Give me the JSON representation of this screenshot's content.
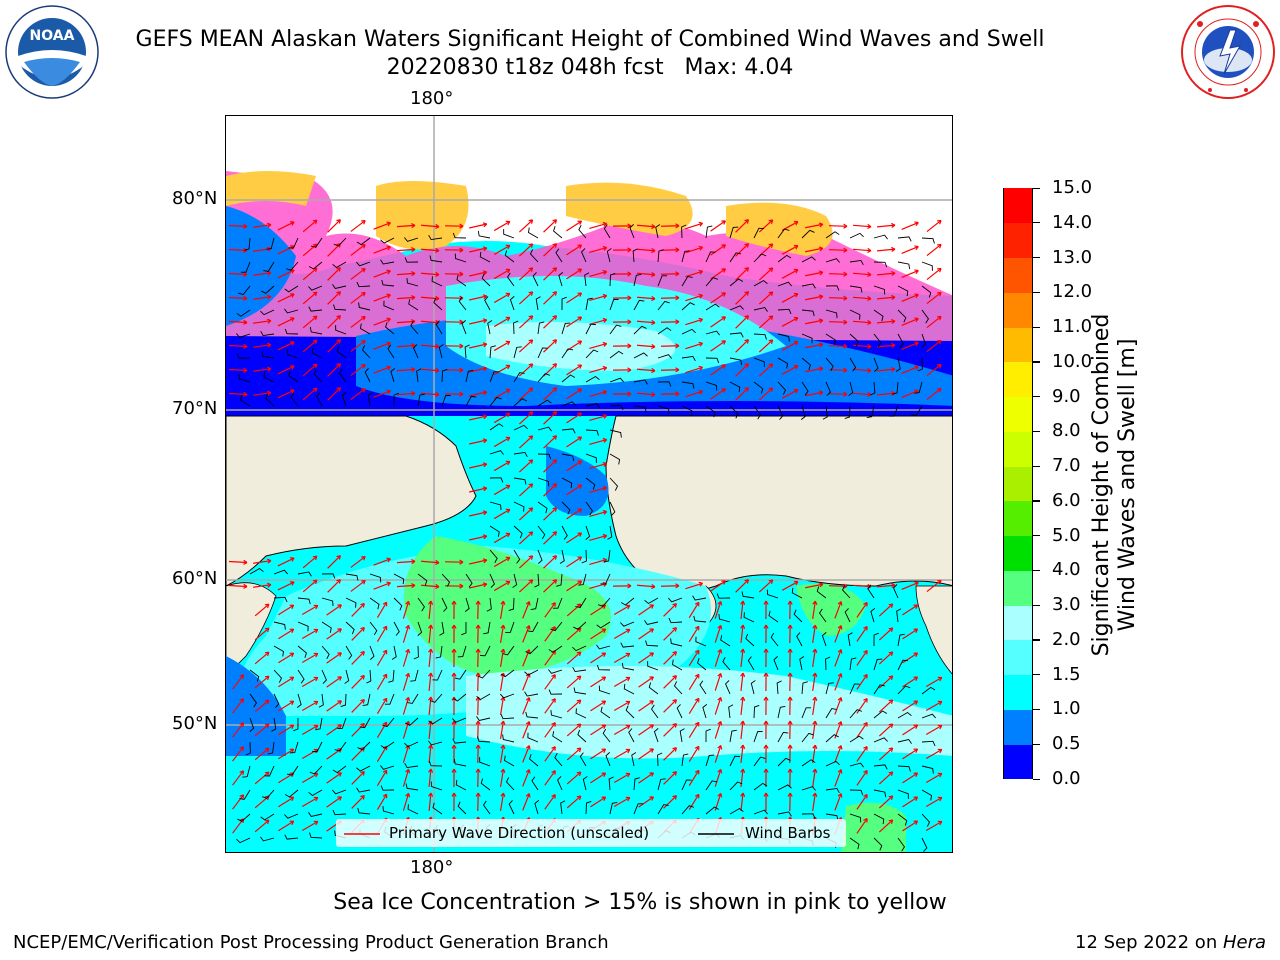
{
  "header": {
    "title_line1": "GEFS MEAN Alaskan Waters Significant Height of Combined Wind Waves and Swell",
    "title_line2": "20220830 t18z 048h fcst   Max: 4.04",
    "left_logo": {
      "text": "NOAA",
      "ring_text": "NATIONAL OCEANIC AND ATMOSPHERIC ADMINISTRATION · U.S. DEPARTMENT OF COMMERCE",
      "color": "#1a5aa8"
    },
    "right_logo": {
      "ring_text": "NATIONAL WEATHER SERVICE",
      "color": "#e02020"
    }
  },
  "map": {
    "lon_labels": [
      "180°",
      "180°"
    ],
    "lat_labels": [
      "80°N",
      "70°N",
      "60°N",
      "50°N"
    ],
    "land_color": "#f0eddd",
    "legend": {
      "wave_label": "Primary Wave Direction (unscaled)",
      "wind_label": "Wind Barbs",
      "wave_color": "#ff0000",
      "wind_color": "#000000"
    }
  },
  "colorbar": {
    "title_line1": "Significant Height of Combined",
    "title_line2": "Wind Waves and Swell [m]",
    "ticks": [
      "15.0",
      "14.0",
      "13.0",
      "12.0",
      "11.0",
      "10.0",
      "9.0",
      "8.0",
      "7.0",
      "6.0",
      "5.0",
      "4.0",
      "3.0",
      "2.0",
      "1.5",
      "1.0",
      "0.5",
      "0.0"
    ],
    "levels": [
      {
        "from": 0.0,
        "to": 0.5,
        "color": "#0000ff"
      },
      {
        "from": 0.5,
        "to": 1.0,
        "color": "#0080ff"
      },
      {
        "from": 1.0,
        "to": 1.5,
        "color": "#00ffff"
      },
      {
        "from": 1.5,
        "to": 2.0,
        "color": "#55ffff"
      },
      {
        "from": 2.0,
        "to": 3.0,
        "color": "#aaffff"
      },
      {
        "from": 3.0,
        "to": 4.0,
        "color": "#55ff80"
      },
      {
        "from": 4.0,
        "to": 5.0,
        "color": "#00e000"
      },
      {
        "from": 5.0,
        "to": 6.0,
        "color": "#55ee00"
      },
      {
        "from": 6.0,
        "to": 7.0,
        "color": "#aaee00"
      },
      {
        "from": 7.0,
        "to": 8.0,
        "color": "#ccff00"
      },
      {
        "from": 8.0,
        "to": 9.0,
        "color": "#eeff00"
      },
      {
        "from": 9.0,
        "to": 10.0,
        "color": "#ffee00"
      },
      {
        "from": 10.0,
        "to": 11.0,
        "color": "#ffbb00"
      },
      {
        "from": 11.0,
        "to": 12.0,
        "color": "#ff8800"
      },
      {
        "from": 12.0,
        "to": 13.0,
        "color": "#ff5500"
      },
      {
        "from": 13.0,
        "to": 14.0,
        "color": "#ff2200"
      },
      {
        "from": 14.0,
        "to": 15.0,
        "color": "#ff0000"
      }
    ]
  },
  "note": "Sea Ice Concentration > 15% is shown in pink to yellow",
  "footer": {
    "left": "NCEP/EMC/Verification Post Processing Product Generation Branch",
    "right_date": "12 Sep 2022 on ",
    "right_host": "Hera"
  }
}
